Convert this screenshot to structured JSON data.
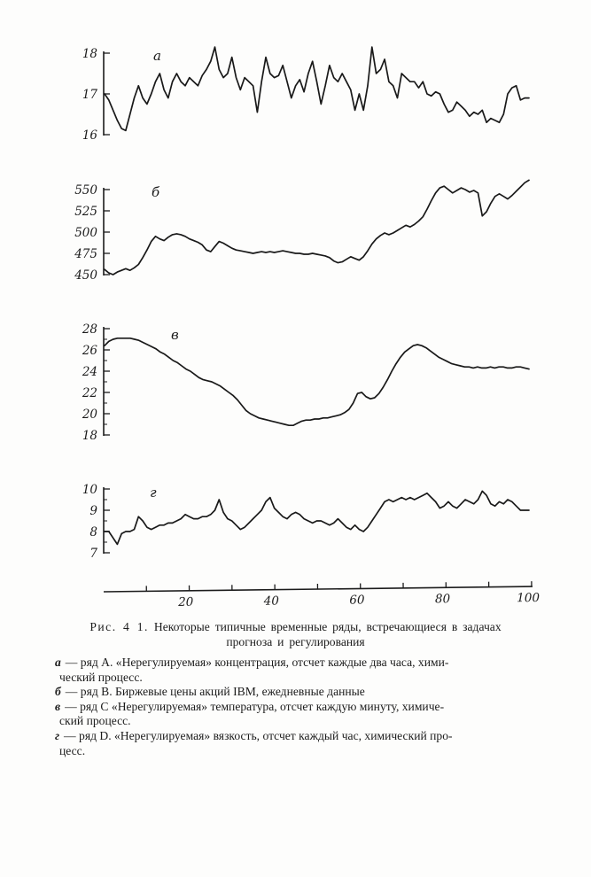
{
  "page": {
    "background": "#fdfdfc",
    "ink": "#1b1b1b"
  },
  "figure": {
    "caption_label": "Рис. 4 1.",
    "caption_line1": "Некоторые типичные временные ряды, встречающиеся в задачах",
    "caption_line2": "прогноза и регулирования",
    "legend": [
      {
        "letter": "а",
        "text": "— ряд А. «Нерегулируемая» концентрация, отсчет каждые два часа, хими-"
      },
      {
        "letter": "",
        "text": "ческий процесс."
      },
      {
        "letter": "б",
        "text": "— ряд В. Биржевые цены акций IBM, ежедневные данные"
      },
      {
        "letter": "в",
        "text": "— ряд С «Нерегулируемая» температура, отсчет каждую минуту, химиче-"
      },
      {
        "letter": "",
        "text": "ский процесс."
      },
      {
        "letter": "г",
        "text": "— ряд D. «Нерегулируемая» вязкость, отсчет каждый час, химический про-"
      },
      {
        "letter": "",
        "text": "цесс."
      }
    ]
  },
  "x_axis": {
    "range": [
      0,
      100
    ],
    "ticks": [
      10,
      20,
      30,
      40,
      50,
      60,
      70,
      80,
      90,
      100
    ],
    "labels": [
      20,
      40,
      60,
      80,
      100
    ]
  },
  "chart_data": [
    {
      "type": "line",
      "id": "a",
      "label": "а",
      "title": "",
      "xlabel": "",
      "ylabel": "",
      "ylim": [
        16,
        18
      ],
      "yticks": [
        16,
        17,
        18
      ],
      "minor_yticks": [],
      "x_range": [
        0,
        100
      ],
      "values": [
        17.0,
        16.85,
        16.6,
        16.35,
        16.15,
        16.1,
        16.5,
        16.9,
        17.2,
        16.9,
        16.75,
        17.0,
        17.3,
        17.5,
        17.1,
        16.9,
        17.3,
        17.5,
        17.3,
        17.2,
        17.4,
        17.3,
        17.2,
        17.45,
        17.6,
        17.8,
        18.15,
        17.6,
        17.4,
        17.5,
        17.9,
        17.4,
        17.1,
        17.4,
        17.3,
        17.2,
        16.55,
        17.3,
        17.9,
        17.5,
        17.4,
        17.45,
        17.7,
        17.3,
        16.9,
        17.2,
        17.35,
        17.05,
        17.5,
        17.8,
        17.3,
        16.75,
        17.2,
        17.7,
        17.4,
        17.3,
        17.5,
        17.3,
        17.1,
        16.6,
        17.0,
        16.6,
        17.2,
        18.15,
        17.5,
        17.6,
        17.85,
        17.3,
        17.2,
        16.9,
        17.5,
        17.4,
        17.3,
        17.3,
        17.15,
        17.3,
        17.0,
        16.95,
        17.05,
        17.0,
        16.75,
        16.55,
        16.6,
        16.8,
        16.7,
        16.6,
        16.45,
        16.55,
        16.5,
        16.6,
        16.3,
        16.4,
        16.35,
        16.3,
        16.5,
        17.0,
        17.15,
        17.2,
        16.85,
        16.9,
        16.9
      ]
    },
    {
      "type": "line",
      "id": "b",
      "label": "б",
      "title": "",
      "xlabel": "",
      "ylabel": "",
      "ylim": [
        450,
        550
      ],
      "yticks": [
        450,
        475,
        500,
        525,
        550
      ],
      "minor_yticks": [],
      "x_range": [
        0,
        100
      ],
      "values": [
        456,
        452,
        450,
        453,
        455,
        457,
        455,
        458,
        462,
        470,
        479,
        489,
        495,
        492,
        490,
        494,
        497,
        498,
        497,
        495,
        492,
        490,
        488,
        485,
        479,
        477,
        483,
        489,
        487,
        484,
        481,
        479,
        478,
        477,
        476,
        475,
        476,
        477,
        476,
        477,
        476,
        477,
        478,
        477,
        476,
        475,
        475,
        474,
        474,
        475,
        474,
        473,
        472,
        470,
        466,
        464,
        465,
        468,
        471,
        469,
        467,
        471,
        478,
        486,
        492,
        496,
        499,
        497,
        499,
        502,
        505,
        508,
        506,
        509,
        513,
        518,
        527,
        537,
        546,
        552,
        554,
        550,
        546,
        549,
        552,
        550,
        547,
        549,
        546,
        519,
        524,
        534,
        542,
        545,
        542,
        539,
        543,
        548,
        553,
        558,
        561
      ]
    },
    {
      "type": "line",
      "id": "v",
      "label": "в",
      "title": "",
      "xlabel": "",
      "ylabel": "",
      "ylim": [
        18,
        28
      ],
      "yticks": [
        18,
        20,
        22,
        24,
        26,
        28
      ],
      "minor_yticks": [
        19,
        21,
        23,
        25,
        27
      ],
      "x_range": [
        0,
        100
      ],
      "values": [
        26.4,
        26.8,
        27.0,
        27.1,
        27.1,
        27.1,
        27.1,
        27.0,
        26.9,
        26.7,
        26.5,
        26.3,
        26.1,
        25.8,
        25.6,
        25.3,
        25.0,
        24.8,
        24.5,
        24.2,
        24.0,
        23.7,
        23.4,
        23.2,
        23.1,
        23.0,
        22.8,
        22.6,
        22.3,
        22.0,
        21.7,
        21.3,
        20.8,
        20.3,
        20.0,
        19.8,
        19.6,
        19.5,
        19.4,
        19.3,
        19.2,
        19.1,
        19.0,
        18.9,
        18.9,
        19.1,
        19.3,
        19.4,
        19.4,
        19.5,
        19.5,
        19.6,
        19.6,
        19.7,
        19.8,
        19.9,
        20.1,
        20.4,
        21.0,
        21.9,
        22.0,
        21.6,
        21.4,
        21.5,
        21.9,
        22.5,
        23.2,
        24.0,
        24.7,
        25.3,
        25.8,
        26.1,
        26.4,
        26.5,
        26.4,
        26.2,
        25.9,
        25.6,
        25.3,
        25.1,
        24.9,
        24.7,
        24.6,
        24.5,
        24.4,
        24.4,
        24.3,
        24.4,
        24.3,
        24.3,
        24.4,
        24.3,
        24.4,
        24.4,
        24.3,
        24.3,
        24.4,
        24.4,
        24.3,
        24.2
      ]
    },
    {
      "type": "line",
      "id": "g",
      "label": "г",
      "title": "",
      "xlabel": "",
      "ylabel": "",
      "ylim": [
        7,
        10
      ],
      "yticks": [
        7,
        8,
        9,
        10
      ],
      "minor_yticks": [
        7.5,
        8.5,
        9.5
      ],
      "x_range": [
        0,
        100
      ],
      "values": [
        8.0,
        8.0,
        7.7,
        7.4,
        7.9,
        8.0,
        8.0,
        8.1,
        8.7,
        8.5,
        8.2,
        8.1,
        8.2,
        8.3,
        8.3,
        8.4,
        8.4,
        8.5,
        8.6,
        8.8,
        8.7,
        8.6,
        8.6,
        8.7,
        8.7,
        8.8,
        9.0,
        9.5,
        8.9,
        8.6,
        8.5,
        8.3,
        8.1,
        8.2,
        8.4,
        8.6,
        8.8,
        9.0,
        9.4,
        9.6,
        9.1,
        8.9,
        8.7,
        8.6,
        8.8,
        8.9,
        8.8,
        8.6,
        8.5,
        8.4,
        8.5,
        8.5,
        8.4,
        8.3,
        8.4,
        8.6,
        8.4,
        8.2,
        8.1,
        8.3,
        8.1,
        8.0,
        8.2,
        8.5,
        8.8,
        9.1,
        9.4,
        9.5,
        9.4,
        9.5,
        9.6,
        9.5,
        9.6,
        9.5,
        9.6,
        9.7,
        9.8,
        9.6,
        9.4,
        9.1,
        9.2,
        9.4,
        9.2,
        9.1,
        9.3,
        9.5,
        9.4,
        9.3,
        9.5,
        9.9,
        9.7,
        9.3,
        9.2,
        9.4,
        9.3,
        9.5,
        9.4,
        9.2,
        9.0,
        9.0,
        9.0
      ]
    }
  ]
}
